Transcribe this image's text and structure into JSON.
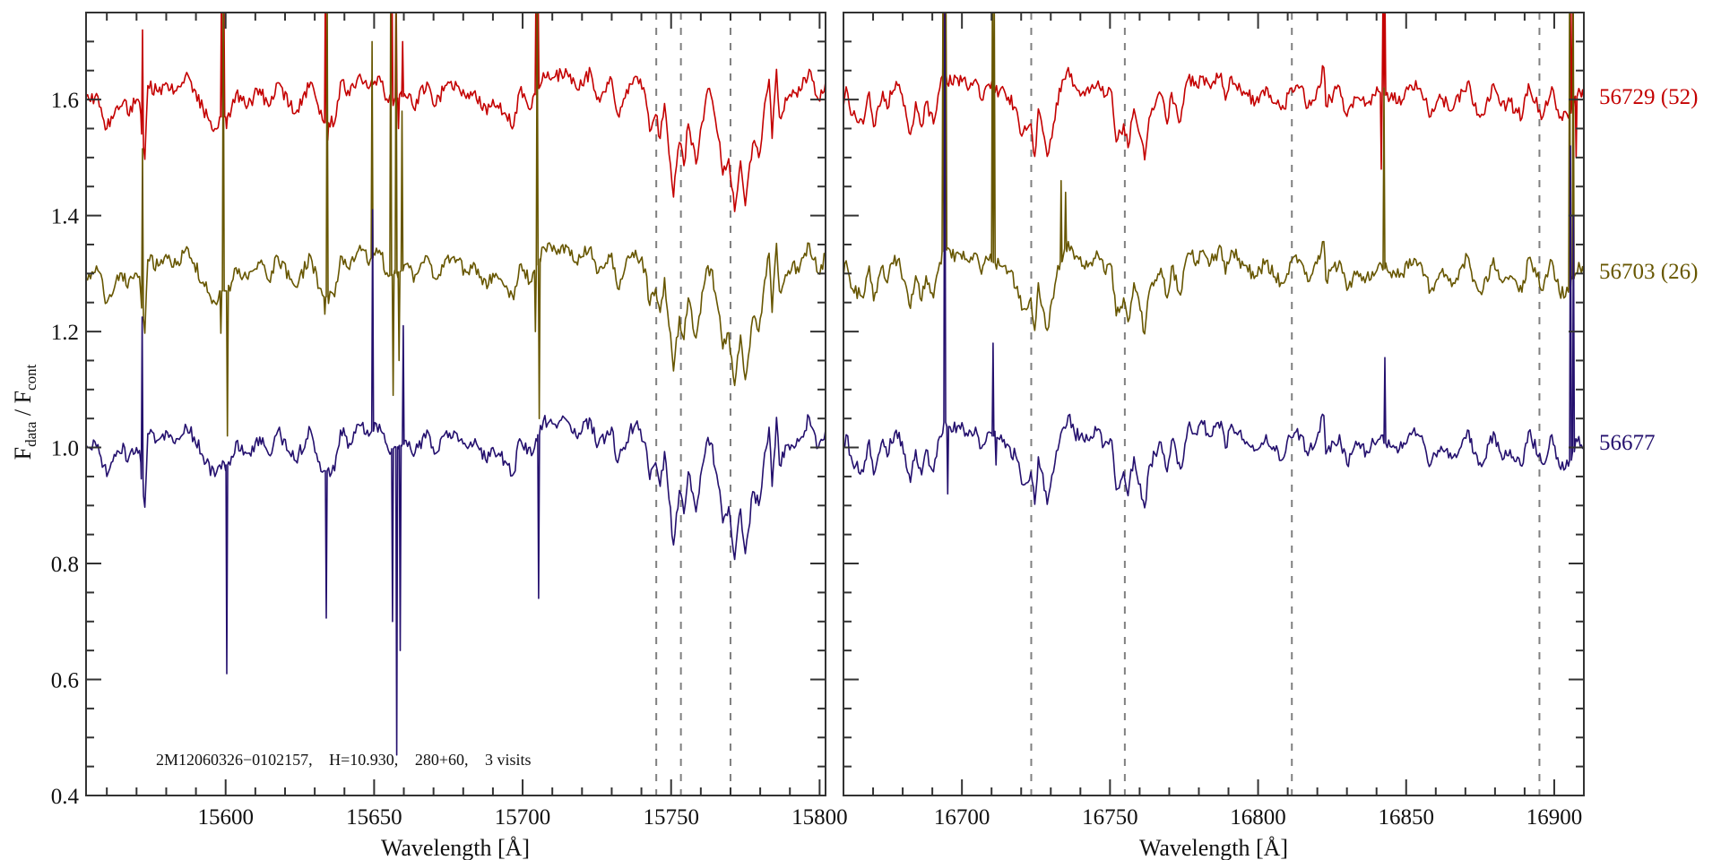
{
  "chart_data": {
    "type": "line",
    "title": "",
    "ylabel": {
      "f1": "F",
      "sub1": "data",
      "sep": " / F",
      "sub2": "cont"
    },
    "xlabel": "Wavelength [Å]",
    "ylim": [
      0.4,
      1.75
    ],
    "yticks_major": [
      0.4,
      0.6,
      0.8,
      1.0,
      1.2,
      1.4,
      1.6
    ],
    "ytick_labels": [
      "0.4",
      "0.6",
      "0.8",
      "1.0",
      "1.2",
      "1.4",
      "1.6"
    ],
    "ytick_minor_step": 0.05,
    "grid": false,
    "annotation": {
      "star": "2M12060326−0102157,",
      "hmag": "H=10.930,",
      "field": "280+60,",
      "visits": "3 visits"
    },
    "panels": [
      {
        "xlim": [
          15553,
          15802
        ],
        "xticks_major": [
          15600,
          15650,
          15700,
          15750,
          15800
        ],
        "xtick_labels": [
          "15600",
          "15650",
          "15700",
          "15750",
          "15800"
        ],
        "xtick_minor_step": 10,
        "dashed_lines": [
          15745,
          15753.3,
          15770
        ],
        "profile": [
          [
            15551,
            0.98
          ],
          [
            15554,
            1.0
          ],
          [
            15557,
            1.005
          ],
          [
            15560,
            0.95
          ],
          [
            15563,
            0.985
          ],
          [
            15566,
            1.0
          ],
          [
            15567,
            0.975
          ],
          [
            15570,
            1.0
          ],
          [
            15571,
            0.995
          ],
          [
            15572.8,
            0.897
          ],
          [
            15573.8,
            1.024
          ],
          [
            15577.3,
            1.013
          ],
          [
            15580.4,
            1.026
          ],
          [
            15583.4,
            1.015
          ],
          [
            15586.4,
            1.04
          ],
          [
            15589.4,
            1.018
          ],
          [
            15592.4,
            0.985
          ],
          [
            15596.4,
            0.95
          ],
          [
            15598,
            0.97
          ],
          [
            15601.5,
            0.97
          ],
          [
            15603.5,
            1.01
          ],
          [
            15607.5,
            0.99
          ],
          [
            15611.5,
            1.018
          ],
          [
            15614.5,
            0.988
          ],
          [
            15617.6,
            1.029
          ],
          [
            15621.6,
            0.99
          ],
          [
            15623.6,
            0.977
          ],
          [
            15628.6,
            1.03
          ],
          [
            15631.6,
            0.975
          ],
          [
            15633.1,
            0.96
          ],
          [
            15636.7,
            0.96
          ],
          [
            15638.7,
            1.03
          ],
          [
            15641.7,
            1.007
          ],
          [
            15644.7,
            1.04
          ],
          [
            15648.7,
            1.024
          ],
          [
            15651.8,
            1.04
          ],
          [
            15654.8,
            0.995
          ],
          [
            15661.8,
            1.01
          ],
          [
            15663.3,
            0.985
          ],
          [
            15667.8,
            1.03
          ],
          [
            15670.8,
            0.99
          ],
          [
            15673.9,
            1.024
          ],
          [
            15677.9,
            1.024
          ],
          [
            15681,
            1.002
          ],
          [
            15684,
            1.015
          ],
          [
            15688,
            0.974
          ],
          [
            15690,
            1.0
          ],
          [
            15694,
            0.977
          ],
          [
            15697,
            0.955
          ],
          [
            15699,
            1.015
          ],
          [
            15703,
            0.986
          ],
          [
            15707,
            1.046
          ],
          [
            15711,
            1.04
          ],
          [
            15715,
            1.046
          ],
          [
            15718,
            1.02
          ],
          [
            15723,
            1.046
          ],
          [
            15725,
            1.0
          ],
          [
            15730,
            1.035
          ],
          [
            15732,
            0.974
          ],
          [
            15736,
            1.027
          ],
          [
            15738,
            1.04
          ],
          [
            15741.3,
            1.008
          ],
          [
            15742.8,
            0.945
          ],
          [
            15744.8,
            0.974
          ],
          [
            15746.3,
            0.933
          ],
          [
            15747.8,
            0.993
          ],
          [
            15750.8,
            0.832
          ],
          [
            15752.8,
            0.926
          ],
          [
            15754.3,
            0.886
          ],
          [
            15755.8,
            0.958
          ],
          [
            15758.4,
            0.889
          ],
          [
            15761.9,
            1.008
          ],
          [
            15763.4,
            1.008
          ],
          [
            15766.4,
            0.926
          ],
          [
            15767.4,
            0.87
          ],
          [
            15769.4,
            0.898
          ],
          [
            15771.4,
            0.807
          ],
          [
            15773.4,
            0.894
          ],
          [
            15775,
            0.817
          ],
          [
            15777.5,
            0.924
          ],
          [
            15779.5,
            0.9
          ],
          [
            15781,
            0.964
          ],
          [
            15783,
            1.035
          ],
          [
            15784,
            0.933
          ],
          [
            15785.5,
            1.052
          ],
          [
            15786.5,
            0.97
          ],
          [
            15789.5,
            1.005
          ],
          [
            15793.5,
            1.015
          ],
          [
            15796.5,
            1.052
          ],
          [
            15799.6,
            1.0
          ],
          [
            15802,
            1.03
          ]
        ]
      },
      {
        "xlim": [
          16660,
          16910
        ],
        "xticks_major": [
          16700,
          16750,
          16800,
          16850,
          16900
        ],
        "xtick_labels": [
          "16700",
          "16750",
          "16800",
          "16850",
          "16900"
        ],
        "xtick_minor_step": 10,
        "dashed_lines": [
          16723.4,
          16755,
          16811.4,
          16895
        ],
        "profile": [
          [
            16659.1,
            0.978
          ],
          [
            16660.9,
            1.022
          ],
          [
            16663.1,
            0.973
          ],
          [
            16666.7,
            0.958
          ],
          [
            16668.7,
            1.013
          ],
          [
            16670.2,
            0.953
          ],
          [
            16673.3,
            1.014
          ],
          [
            16674.8,
            0.984
          ],
          [
            16675.8,
            1.015
          ],
          [
            16678.8,
            1.026
          ],
          [
            16680.3,
            0.989
          ],
          [
            16682.6,
            0.94
          ],
          [
            16684.4,
            0.996
          ],
          [
            16686.4,
            0.953
          ],
          [
            16687.9,
            0.996
          ],
          [
            16690.4,
            0.958
          ],
          [
            16692.5,
            1.019
          ],
          [
            16694,
            1.045
          ],
          [
            16696.5,
            1.027
          ],
          [
            16698.5,
            1.037
          ],
          [
            16701.5,
            1.025
          ],
          [
            16704.6,
            1.035
          ],
          [
            16706.6,
            0.999
          ],
          [
            16708.6,
            1.025
          ],
          [
            16712.7,
            1.014
          ],
          [
            16715.7,
            1.004
          ],
          [
            16718.7,
            0.978
          ],
          [
            16720.2,
            0.937
          ],
          [
            16723.3,
            0.958
          ],
          [
            16724.6,
            0.902
          ],
          [
            16725.8,
            0.984
          ],
          [
            16728.8,
            0.902
          ],
          [
            16730.9,
            0.958
          ],
          [
            16731.9,
            0.994
          ],
          [
            16734.4,
            1.035
          ],
          [
            16735.9,
            1.055
          ],
          [
            16738,
            1.025
          ],
          [
            16741,
            1.014
          ],
          [
            16743.5,
            1.019
          ],
          [
            16746,
            1.032
          ],
          [
            16748,
            1.004
          ],
          [
            16750.6,
            1.012
          ],
          [
            16752.1,
            0.927
          ],
          [
            16753.6,
            0.943
          ],
          [
            16754.6,
            0.958
          ],
          [
            16756.1,
            0.917
          ],
          [
            16758.1,
            0.984
          ],
          [
            16760.2,
            0.937
          ],
          [
            16761.7,
            0.896
          ],
          [
            16763.2,
            0.968
          ],
          [
            16765.2,
            0.989
          ],
          [
            16767.2,
            1.009
          ],
          [
            16769.3,
            0.958
          ],
          [
            16770.8,
            1.012
          ],
          [
            16773.8,
            0.963
          ],
          [
            16776.3,
            1.035
          ],
          [
            16779.4,
            1.022
          ],
          [
            16781.4,
            1.04
          ],
          [
            16784,
            1.019
          ],
          [
            16787.5,
            1.045
          ],
          [
            16789,
            0.999
          ],
          [
            16791,
            1.04
          ],
          [
            16795.1,
            1.014
          ],
          [
            16799.2,
            0.996
          ],
          [
            16802.7,
            1.022
          ],
          [
            16805.7,
            0.994
          ],
          [
            16808.8,
            0.984
          ],
          [
            16810.8,
            1.019
          ],
          [
            16814.3,
            1.022
          ],
          [
            16816.8,
            0.986
          ],
          [
            16819.9,
            1.017
          ],
          [
            16822.2,
            1.055
          ],
          [
            16822.9,
            0.989
          ],
          [
            16827.5,
            1.022
          ],
          [
            16830,
            0.971
          ],
          [
            16833.5,
            1.004
          ],
          [
            16836.6,
            0.994
          ],
          [
            16840.6,
            1.014
          ],
          [
            16844.6,
            1.002
          ],
          [
            16848.7,
            0.999
          ],
          [
            16851.2,
            1.025
          ],
          [
            16854.8,
            1.019
          ],
          [
            16858.3,
            0.971
          ],
          [
            16861.8,
            1.002
          ],
          [
            16865.9,
            0.984
          ],
          [
            16870.7,
            1.03
          ],
          [
            16872.9,
            0.989
          ],
          [
            16876,
            0.973
          ],
          [
            16879.5,
            1.027
          ],
          [
            16882,
            0.989
          ],
          [
            16885.1,
            0.996
          ],
          [
            16889.1,
            0.968
          ],
          [
            16891.3,
            1.027
          ],
          [
            16896.2,
            0.971
          ],
          [
            16899.2,
            1.022
          ],
          [
            16901.7,
            0.968
          ],
          [
            16904.8,
            0.968
          ],
          [
            16908.3,
            1.019
          ],
          [
            16910,
            1.0
          ]
        ]
      }
    ],
    "series": [
      {
        "name": "56729 (52)",
        "color": "#c40000",
        "offset": 0.6,
        "spikes": [
          [
            [
              15572,
              1.72
            ],
            [
              15598.6,
              1.8
            ],
            [
              15599.4,
              1.8
            ],
            [
              15600.3,
              1.55
            ],
            [
              15633.6,
              1.8
            ],
            [
              15634.4,
              1.53
            ],
            [
              15656,
              1.8
            ],
            [
              15657.4,
              1.8
            ],
            [
              15658.2,
              1.55
            ],
            [
              15659.6,
              1.7
            ],
            [
              15704.5,
              1.8
            ],
            [
              15705.2,
              1.8
            ]
          ],
          [
            [
              16693.8,
              1.8
            ],
            [
              16694.4,
              1.8
            ],
            [
              16710.5,
              1.65
            ],
            [
              16841.6,
              1.48
            ],
            [
              16842.2,
              1.8
            ],
            [
              16842.8,
              1.8
            ],
            [
              16905.4,
              1.8
            ],
            [
              16906.2,
              1.8
            ],
            [
              16907.4,
              1.5
            ]
          ]
        ]
      },
      {
        "name": "56703 (26)",
        "color": "#675600",
        "offset": 0.3,
        "spikes": [
          [
            [
              15572,
              1.515
            ],
            [
              15598.4,
              1.197
            ],
            [
              15599.2,
              1.8
            ],
            [
              15600.6,
              1.02
            ],
            [
              15633.4,
              1.23
            ],
            [
              15634.2,
              1.8
            ],
            [
              15649.3,
              1.7
            ],
            [
              15655.6,
              1.8
            ],
            [
              15656.4,
              1.09
            ],
            [
              15657.4,
              1.8
            ],
            [
              15658.4,
              1.15
            ],
            [
              15659.4,
              1.58
            ],
            [
              15704.3,
              1.2
            ],
            [
              15704.9,
              1.8
            ],
            [
              15705.6,
              1.05
            ]
          ],
          [
            [
              16693.6,
              1.8
            ],
            [
              16694.6,
              1.8
            ],
            [
              16710.3,
              1.8
            ],
            [
              16710.9,
              1.8
            ],
            [
              16733.5,
              1.46
            ],
            [
              16735,
              1.44
            ],
            [
              16842.5,
              1.62
            ],
            [
              16905.2,
              1.8
            ],
            [
              16906.4,
              1.8
            ]
          ]
        ]
      },
      {
        "name": "56677",
        "color": "#24106e",
        "offset": 0.0,
        "spikes": [
          [
            [
              15571.9,
              1.225
            ],
            [
              15600.4,
              0.61
            ],
            [
              15633.9,
              0.706
            ],
            [
              15649.5,
              1.41
            ],
            [
              15656.2,
              0.7
            ],
            [
              15657.6,
              0.47
            ],
            [
              15658.8,
              0.65
            ],
            [
              15659.8,
              1.21
            ],
            [
              15705.4,
              0.74
            ]
          ],
          [
            [
              16694.2,
              1.8
            ],
            [
              16695.2,
              0.92
            ],
            [
              16710.5,
              1.18
            ],
            [
              16711.5,
              0.97
            ],
            [
              16842.8,
              1.155
            ],
            [
              16905.5,
              1.52
            ],
            [
              16906.5,
              1.4
            ]
          ]
        ]
      }
    ]
  }
}
